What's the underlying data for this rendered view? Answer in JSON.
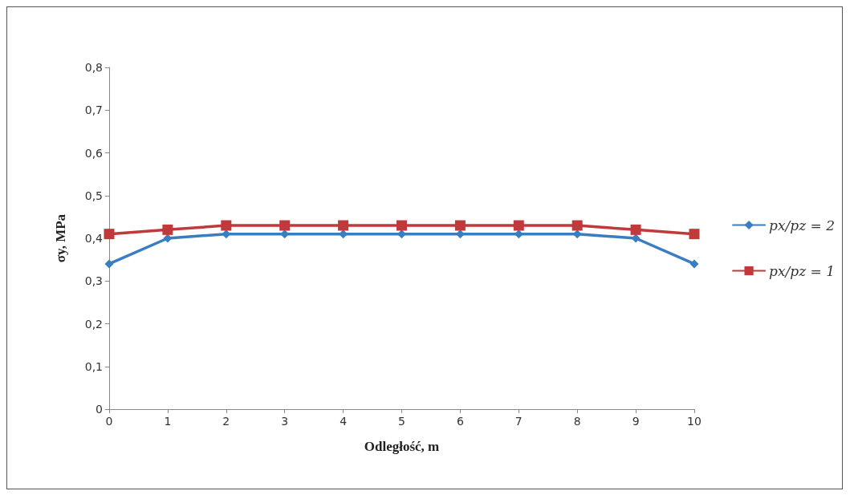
{
  "chart_data": {
    "type": "line",
    "xlabel": "Odległość, m",
    "ylabel": "σy, MPa",
    "x": [
      0,
      1,
      2,
      3,
      4,
      5,
      6,
      7,
      8,
      9,
      10
    ],
    "series": [
      {
        "name": "px/pz = 2",
        "color": "#3a7dc0",
        "marker": "diamond",
        "values": [
          0.34,
          0.4,
          0.41,
          0.41,
          0.41,
          0.41,
          0.41,
          0.41,
          0.41,
          0.4,
          0.34
        ]
      },
      {
        "name": "px/pz = 1",
        "color": "#c0393b",
        "marker": "square",
        "values": [
          0.41,
          0.42,
          0.43,
          0.43,
          0.43,
          0.43,
          0.43,
          0.43,
          0.43,
          0.42,
          0.41
        ]
      }
    ],
    "xlim": [
      0,
      10
    ],
    "xticks": [
      0,
      1,
      2,
      3,
      4,
      5,
      6,
      7,
      8,
      9,
      10
    ],
    "ylim": [
      0,
      0.8
    ],
    "yticks": [
      0,
      {
        "value": 0.1,
        "label": "0,1"
      },
      {
        "value": 0.2,
        "label": "0,2"
      },
      {
        "value": 0.3,
        "label": "0,3"
      },
      {
        "value": 0.4,
        "label": "0,4"
      },
      {
        "value": 0.5,
        "label": "0,5"
      },
      {
        "value": 0.6,
        "label": "0,6"
      },
      {
        "value": 0.7,
        "label": "0,7"
      },
      {
        "value": 0.8,
        "label": "0,8"
      }
    ],
    "grid": false,
    "legend": "right",
    "line_style": "solid"
  }
}
